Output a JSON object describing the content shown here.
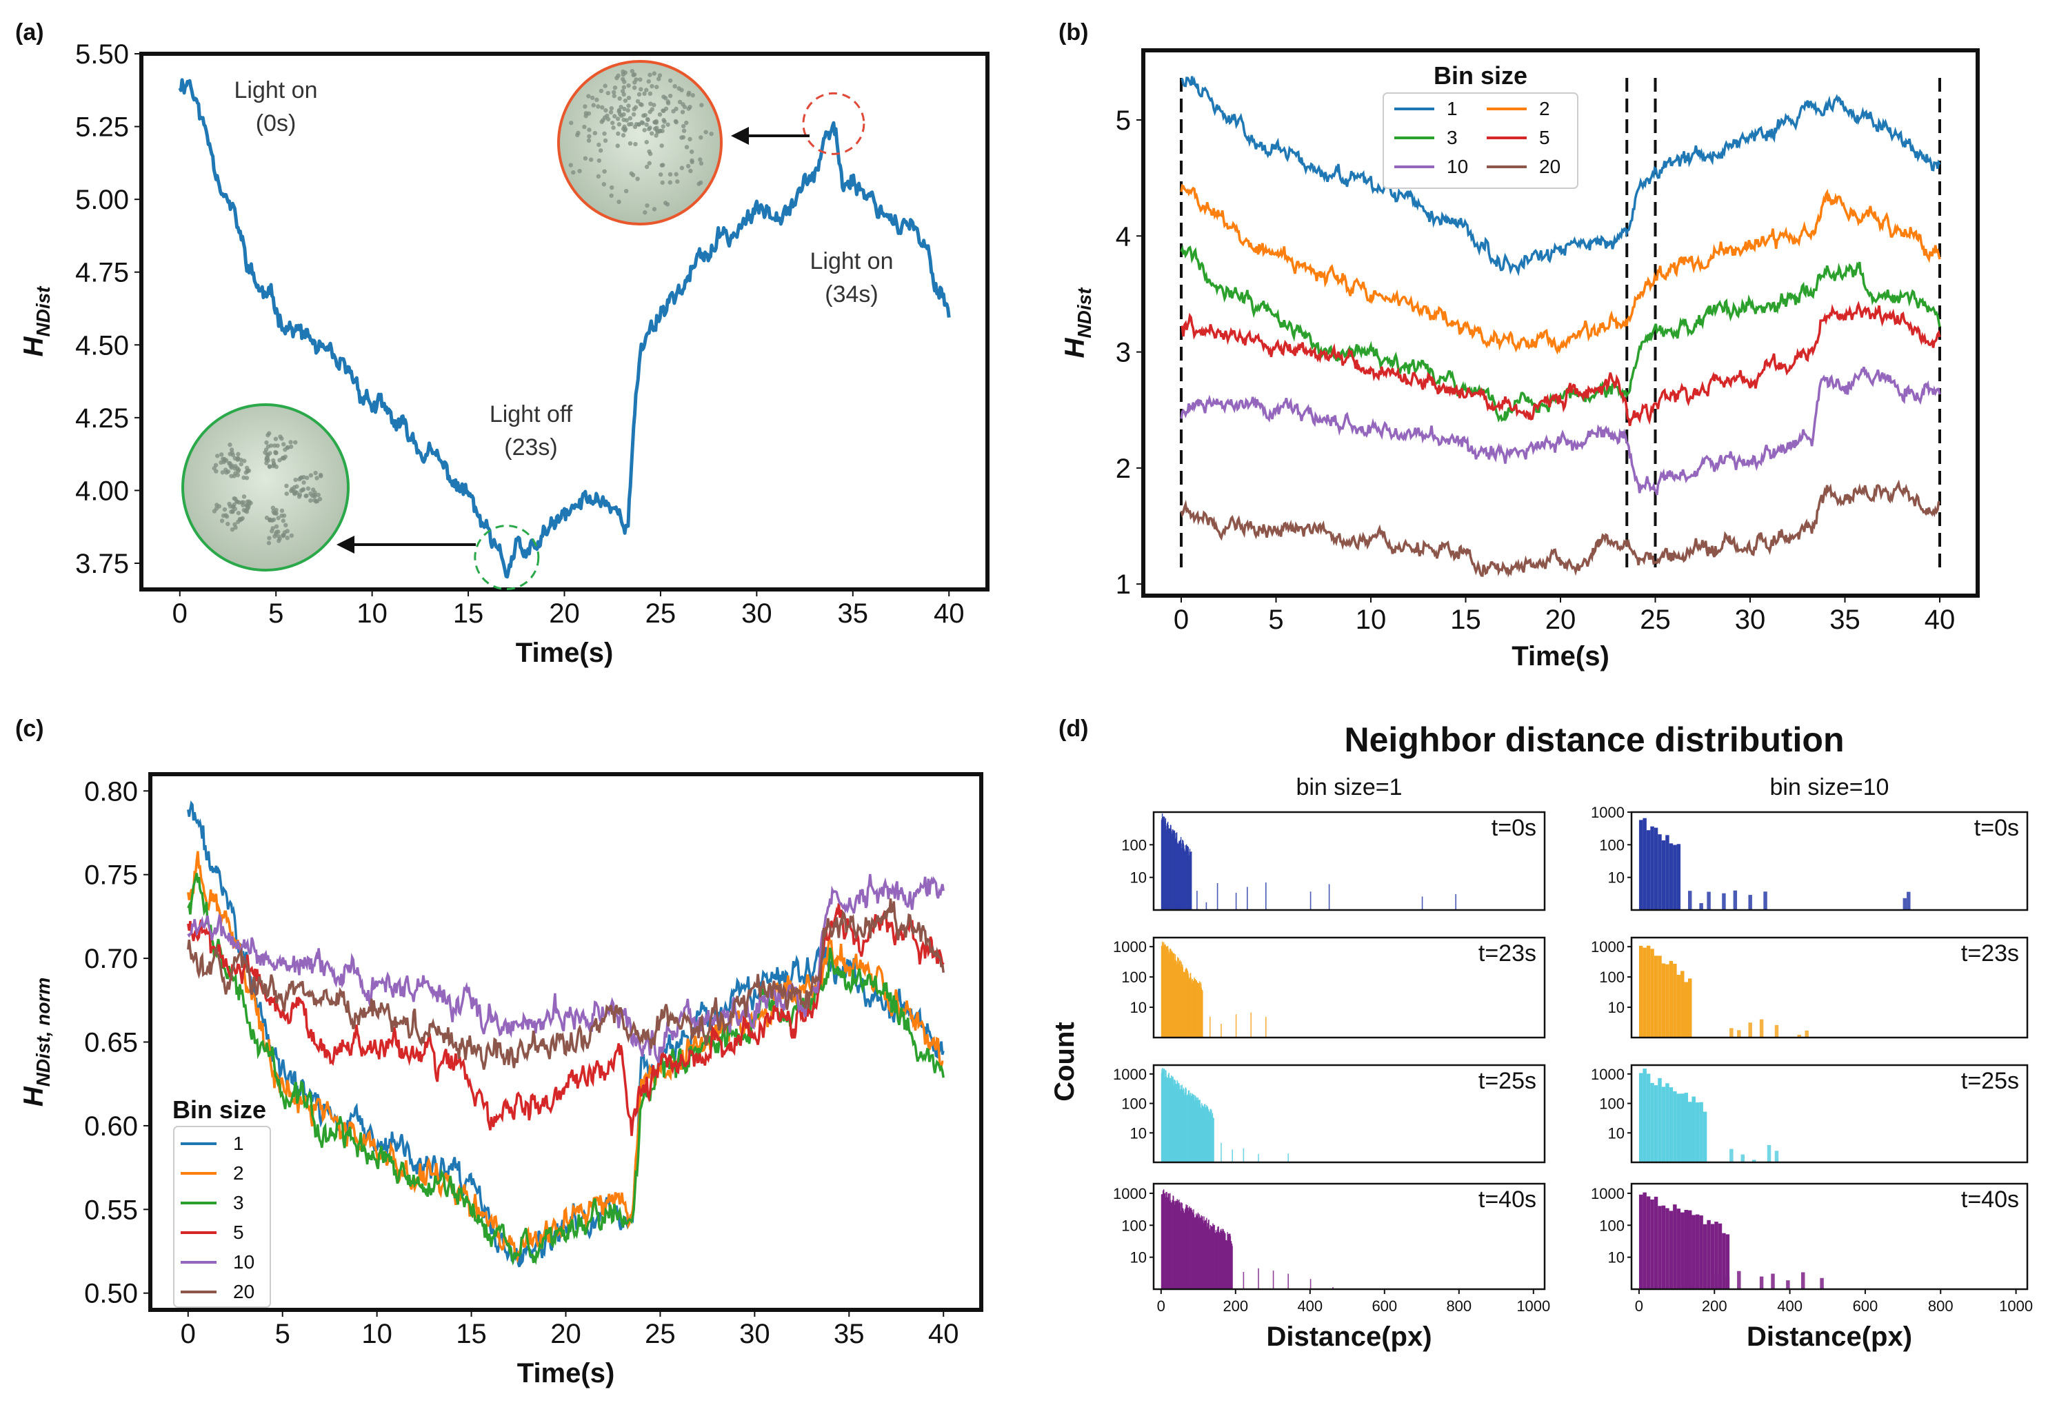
{
  "panel_labels": {
    "a": "(a)",
    "b": "(b)",
    "c": "(c)",
    "d": "(d)"
  },
  "colors": {
    "blue": "#1f77b4",
    "orange": "#ff7f0e",
    "green": "#2ca02c",
    "red": "#d62728",
    "purple": "#9467bd",
    "brown": "#8c564b",
    "hist_t0": "#2c3ea8",
    "hist_t23": "#f5a623",
    "hist_t25": "#5ccfe0",
    "hist_t40": "#7b2185",
    "circle_green": "#2aa84a",
    "circle_red": "#e8582c",
    "circle_fill": "#c8d8c6"
  },
  "annotations": {
    "light_on_0_line1": "Light on",
    "light_on_0_line2": "(0s)",
    "light_off_line1": "Light off",
    "light_off_line2": "(23s)",
    "light_on_34_line1": "Light on",
    "light_on_34_line2": "(34s)"
  },
  "chart_data": [
    {
      "id": "a",
      "type": "line",
      "title": "",
      "xlabel": "Time(s)",
      "ylabel": "H_NDist",
      "ylabel_main": "H",
      "ylabel_sub": "NDist",
      "xlim": [
        -2,
        42
      ],
      "ylim": [
        3.66,
        5.5
      ],
      "xticks": [
        0,
        5,
        10,
        15,
        20,
        25,
        30,
        35,
        40
      ],
      "yticks": [
        3.75,
        4.0,
        4.25,
        4.5,
        4.75,
        5.0,
        5.25,
        5.5
      ],
      "ytick_labels": [
        "3.75",
        "4.00",
        "4.25",
        "4.50",
        "4.75",
        "5.00",
        "5.25",
        "5.50"
      ],
      "series": [
        {
          "name": "H_NDist",
          "color": "#1f77b4",
          "x": [
            0,
            0.5,
            1,
            1.5,
            2,
            2.5,
            3,
            3.5,
            4,
            5,
            6,
            7,
            8,
            9,
            10,
            11,
            12,
            13,
            14,
            15,
            16,
            16.5,
            17,
            17.5,
            18,
            18.5,
            19,
            20,
            21,
            22,
            23,
            23.3,
            23.6,
            24,
            25,
            26,
            27,
            28,
            29,
            30,
            31,
            32,
            33,
            33.5,
            34,
            34.5,
            35,
            36,
            37,
            38,
            39,
            39.5,
            40
          ],
          "y": [
            5.4,
            5.42,
            5.3,
            5.2,
            5.1,
            5.0,
            4.9,
            4.78,
            4.7,
            4.62,
            4.55,
            4.5,
            4.42,
            4.38,
            4.3,
            4.24,
            4.18,
            4.12,
            4.05,
            3.98,
            3.84,
            3.77,
            3.72,
            3.8,
            3.76,
            3.8,
            3.85,
            3.9,
            3.96,
            3.98,
            3.92,
            3.88,
            4.2,
            4.5,
            4.62,
            4.7,
            4.78,
            4.85,
            4.9,
            4.95,
            4.98,
            5.02,
            5.1,
            5.15,
            5.25,
            5.05,
            5.08,
            5.0,
            4.95,
            4.9,
            4.78,
            4.7,
            4.62
          ]
        }
      ]
    },
    {
      "id": "b",
      "type": "line",
      "title": "",
      "xlabel": "Time(s)",
      "ylabel": "H_NDist",
      "ylabel_main": "H",
      "ylabel_sub": "NDist",
      "xlim": [
        -2,
        42
      ],
      "ylim": [
        0.9,
        5.6
      ],
      "xticks": [
        0,
        5,
        10,
        15,
        20,
        25,
        30,
        35,
        40
      ],
      "yticks": [
        1,
        2,
        3,
        4,
        5
      ],
      "ytick_labels": [
        "1",
        "2",
        "3",
        "4",
        "5"
      ],
      "vlines": [
        0,
        23.5,
        25,
        40
      ],
      "legend_title": "Bin size",
      "legend_position": "top-center",
      "series": [
        {
          "name": "1",
          "color": "#1f77b4",
          "x": [
            0,
            3,
            6,
            9,
            12,
            15,
            17,
            20,
            23,
            23.5,
            24,
            25,
            28,
            31,
            33.5,
            36,
            38,
            40
          ],
          "y": [
            5.4,
            4.95,
            4.65,
            4.45,
            4.3,
            4.05,
            3.78,
            3.85,
            4.0,
            3.95,
            4.35,
            4.55,
            4.75,
            4.95,
            5.1,
            5.05,
            4.85,
            4.6
          ]
        },
        {
          "name": "2",
          "color": "#ff7f0e",
          "x": [
            0,
            3,
            6,
            9,
            12,
            15,
            17,
            20,
            23,
            23.5,
            24,
            25,
            28,
            31,
            33.5,
            34,
            36,
            38,
            40
          ],
          "y": [
            4.42,
            4.0,
            3.75,
            3.55,
            3.4,
            3.2,
            3.05,
            3.12,
            3.25,
            3.2,
            3.45,
            3.65,
            3.82,
            3.95,
            4.05,
            4.3,
            4.15,
            4.05,
            3.8
          ]
        },
        {
          "name": "3",
          "color": "#2ca02c",
          "x": [
            0,
            3,
            6,
            9,
            12,
            15,
            17,
            20,
            23,
            23.5,
            24,
            25,
            28,
            31,
            33.5,
            34,
            36,
            38,
            40
          ],
          "y": [
            3.9,
            3.5,
            3.2,
            3.0,
            2.85,
            2.65,
            2.5,
            2.6,
            2.7,
            2.65,
            2.95,
            3.15,
            3.3,
            3.45,
            3.55,
            3.75,
            3.6,
            3.5,
            3.3
          ]
        },
        {
          "name": "5",
          "color": "#d62728",
          "x": [
            0,
            3,
            6,
            9,
            12,
            15,
            17,
            20,
            23,
            23.5,
            24,
            25,
            28,
            31,
            33.3,
            33.7,
            36,
            38,
            40
          ],
          "y": [
            3.25,
            3.1,
            3.0,
            2.9,
            2.8,
            2.6,
            2.55,
            2.6,
            2.72,
            2.5,
            2.4,
            2.5,
            2.7,
            2.85,
            2.95,
            3.3,
            3.35,
            3.3,
            3.12
          ]
        },
        {
          "name": "10",
          "color": "#9467bd",
          "x": [
            0,
            3,
            6,
            9,
            12,
            15,
            17,
            20,
            23,
            23.5,
            24,
            25,
            28,
            31,
            33.3,
            33.7,
            36,
            38,
            40
          ],
          "y": [
            2.45,
            2.55,
            2.45,
            2.38,
            2.3,
            2.2,
            2.15,
            2.22,
            2.32,
            2.25,
            1.9,
            1.88,
            2.0,
            2.12,
            2.25,
            2.7,
            2.78,
            2.75,
            2.7
          ]
        },
        {
          "name": "20",
          "color": "#8c564b",
          "x": [
            0,
            3,
            6,
            9,
            12,
            15,
            17,
            20,
            23,
            23.5,
            24,
            25,
            28,
            31,
            33.3,
            33.7,
            36,
            38,
            40
          ],
          "y": [
            1.65,
            1.55,
            1.45,
            1.38,
            1.32,
            1.25,
            1.12,
            1.2,
            1.32,
            1.3,
            1.25,
            1.2,
            1.32,
            1.4,
            1.45,
            1.72,
            1.82,
            1.75,
            1.65
          ]
        }
      ]
    },
    {
      "id": "c",
      "type": "line",
      "title": "",
      "xlabel": "Time(s)",
      "ylabel": "H_NDist,norm",
      "ylabel_main": "H",
      "ylabel_sub": "NDist, norm",
      "xlim": [
        -2,
        42
      ],
      "ylim": [
        0.49,
        0.81
      ],
      "xticks": [
        0,
        5,
        10,
        15,
        20,
        25,
        30,
        35,
        40
      ],
      "yticks": [
        0.5,
        0.55,
        0.6,
        0.65,
        0.7,
        0.75,
        0.8
      ],
      "ytick_labels": [
        "0.50",
        "0.55",
        "0.60",
        "0.65",
        "0.70",
        "0.75",
        "0.80"
      ],
      "legend_title": "Bin size",
      "legend_position": "lower-left",
      "series": [
        {
          "name": "1",
          "color": "#1f77b4",
          "x": [
            0,
            0.5,
            1,
            2,
            3,
            4,
            5,
            7,
            10,
            13,
            15,
            17,
            19,
            21,
            23,
            23.5,
            24,
            26,
            29,
            31,
            33.5,
            34,
            36,
            38,
            40
          ],
          "y": [
            0.79,
            0.78,
            0.76,
            0.74,
            0.7,
            0.66,
            0.63,
            0.61,
            0.59,
            0.575,
            0.56,
            0.52,
            0.525,
            0.545,
            0.55,
            0.54,
            0.63,
            0.65,
            0.67,
            0.685,
            0.705,
            0.7,
            0.68,
            0.67,
            0.64
          ]
        },
        {
          "name": "2",
          "color": "#ff7f0e",
          "x": [
            0,
            0.5,
            1,
            2,
            3,
            4,
            5,
            7,
            10,
            13,
            15,
            17,
            19,
            21,
            23,
            23.5,
            24,
            26,
            29,
            31,
            33.5,
            34,
            36,
            38,
            40
          ],
          "y": [
            0.74,
            0.76,
            0.73,
            0.72,
            0.69,
            0.65,
            0.625,
            0.605,
            0.585,
            0.57,
            0.555,
            0.53,
            0.535,
            0.55,
            0.555,
            0.545,
            0.625,
            0.645,
            0.665,
            0.675,
            0.68,
            0.71,
            0.69,
            0.675,
            0.64
          ]
        },
        {
          "name": "3",
          "color": "#2ca02c",
          "x": [
            0,
            0.5,
            1,
            2,
            3,
            4,
            5,
            7,
            10,
            13,
            15,
            17,
            19,
            21,
            23,
            23.5,
            24,
            26,
            29,
            31,
            33.5,
            34,
            36,
            38,
            40
          ],
          "y": [
            0.73,
            0.74,
            0.72,
            0.7,
            0.67,
            0.645,
            0.62,
            0.6,
            0.58,
            0.565,
            0.55,
            0.525,
            0.53,
            0.545,
            0.55,
            0.54,
            0.62,
            0.64,
            0.66,
            0.67,
            0.675,
            0.7,
            0.68,
            0.665,
            0.63
          ]
        },
        {
          "name": "5",
          "color": "#d62728",
          "x": [
            0,
            1,
            2,
            3,
            5,
            7,
            9,
            11,
            13,
            15,
            16,
            17,
            19,
            21,
            23,
            23.5,
            24,
            26,
            29,
            31,
            33.3,
            33.7,
            36,
            38,
            40
          ],
          "y": [
            0.72,
            0.71,
            0.7,
            0.69,
            0.67,
            0.655,
            0.65,
            0.645,
            0.64,
            0.625,
            0.605,
            0.61,
            0.62,
            0.63,
            0.635,
            0.6,
            0.62,
            0.64,
            0.655,
            0.66,
            0.665,
            0.715,
            0.72,
            0.715,
            0.7
          ]
        },
        {
          "name": "10",
          "color": "#9467bd",
          "x": [
            0,
            1,
            2,
            3,
            5,
            7,
            9,
            11,
            13,
            15,
            17,
            19,
            21,
            23,
            23.5,
            24,
            26,
            29,
            31,
            33.3,
            33.7,
            36,
            38,
            40
          ],
          "y": [
            0.72,
            0.715,
            0.71,
            0.71,
            0.7,
            0.695,
            0.69,
            0.685,
            0.68,
            0.665,
            0.66,
            0.665,
            0.67,
            0.675,
            0.655,
            0.65,
            0.66,
            0.67,
            0.675,
            0.68,
            0.73,
            0.74,
            0.745,
            0.735
          ]
        },
        {
          "name": "20",
          "color": "#8c564b",
          "x": [
            0,
            1,
            2,
            3,
            5,
            7,
            9,
            11,
            13,
            15,
            17,
            19,
            21,
            23,
            23.5,
            24,
            26,
            29,
            31,
            33.3,
            33.7,
            36,
            38,
            40
          ],
          "y": [
            0.71,
            0.7,
            0.695,
            0.69,
            0.68,
            0.675,
            0.67,
            0.665,
            0.66,
            0.645,
            0.645,
            0.65,
            0.655,
            0.665,
            0.655,
            0.655,
            0.66,
            0.67,
            0.675,
            0.68,
            0.715,
            0.72,
            0.72,
            0.7
          ]
        }
      ]
    },
    {
      "id": "d",
      "type": "bar",
      "title": "Neighbor distance distribution",
      "xlabel": "Distance(px)",
      "ylabel": "Count",
      "xlim": [
        -20,
        1030
      ],
      "xticks": [
        0,
        200,
        400,
        600,
        800,
        1000
      ],
      "xtick_labels": [
        "0",
        "200",
        "400",
        "600",
        "800",
        "1000"
      ],
      "yscale": "log",
      "columns": [
        {
          "label": "bin size=1",
          "bin_width": 1
        },
        {
          "label": "bin size=10",
          "bin_width": 10
        }
      ],
      "rows": [
        {
          "label": "t=0s",
          "color": "#2c3ea8",
          "ylim_log": [
            0,
            3
          ],
          "yticks": [
            10,
            100
          ],
          "ytick_labels": [
            "10",
            "100"
          ],
          "yticks_right": [
            10,
            100,
            1000
          ],
          "ytick_labels_right": [
            "10",
            "100",
            "1000"
          ],
          "peak": 700,
          "decay": 30,
          "cutoff": 80,
          "tail": [
            95,
            120,
            150,
            200,
            230,
            280,
            320,
            400,
            450,
            700,
            790
          ],
          "tail10": [
            130,
            160,
            180,
            220,
            250,
            290,
            330,
            700,
            710
          ]
        },
        {
          "label": "t=23s",
          "color": "#f5a623",
          "ylim_log": [
            0,
            3.3
          ],
          "yticks": [
            10,
            100,
            1000
          ],
          "ytick_labels": [
            "10",
            "100",
            "1000"
          ],
          "yticks_right": [
            10,
            100,
            1000
          ],
          "ytick_labels_right": [
            "10",
            "100",
            "1000"
          ],
          "peak": 1300,
          "decay": 32,
          "cutoff": 110,
          "tail": [
            130,
            160,
            200,
            240,
            280
          ],
          "tail10": [
            240,
            260,
            290,
            320,
            360,
            420,
            440
          ]
        },
        {
          "label": "t=25s",
          "color": "#5ccfe0",
          "ylim_log": [
            0,
            3.3
          ],
          "yticks": [
            10,
            100,
            1000
          ],
          "ytick_labels": [
            "10",
            "100",
            "1000"
          ],
          "yticks_right": [
            10,
            100,
            1000
          ],
          "ytick_labels_right": [
            "10",
            "100",
            "1000"
          ],
          "peak": 1300,
          "decay": 40,
          "cutoff": 140,
          "tail": [
            160,
            190,
            220,
            260,
            300,
            340
          ],
          "tail10": [
            240,
            270,
            300,
            340,
            360
          ]
        },
        {
          "label": "t=40s",
          "color": "#7b2185",
          "ylim_log": [
            0,
            3.3
          ],
          "yticks": [
            10,
            100,
            1000
          ],
          "ytick_labels": [
            "10",
            "100",
            "1000"
          ],
          "yticks_right": [
            10,
            100,
            1000
          ],
          "ytick_labels_right": [
            "10",
            "100",
            "1000"
          ],
          "peak": 1100,
          "decay": 55,
          "cutoff": 190,
          "tail": [
            220,
            260,
            300,
            340,
            400,
            460
          ],
          "tail10": [
            200,
            230,
            260,
            320,
            350,
            390,
            430,
            480
          ]
        }
      ]
    }
  ]
}
